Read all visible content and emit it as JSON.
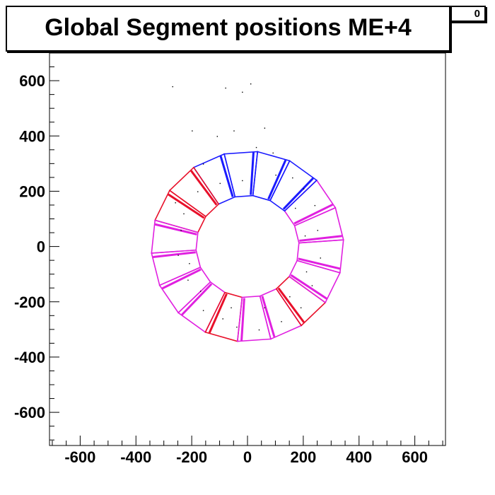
{
  "chart_data": {
    "type": "scatter",
    "title": "Global Segment positions ME+4",
    "stat_box": "0",
    "xlabel": "",
    "ylabel": "",
    "xlim": [
      -710,
      710
    ],
    "ylim": [
      -720,
      700
    ],
    "x_ticks": [
      -600,
      -400,
      -200,
      0,
      200,
      400,
      600
    ],
    "y_ticks": [
      600,
      400,
      200,
      0,
      -200,
      -400,
      -600
    ],
    "x_tick_labels": [
      "-600",
      "-400",
      "-200",
      "0",
      "200",
      "400",
      "600"
    ],
    "y_tick_labels": [
      "600",
      "400",
      "200",
      "0",
      "-200",
      "-400",
      "-600"
    ],
    "ring": {
      "inner_radius": 185,
      "outer_radius": 345,
      "chambers": 18,
      "rotation_deg": 84
    },
    "colors": {
      "blue": "#1a1aff",
      "red": "#e8102a",
      "magenta": "#e020e0",
      "purple": "#b030e0",
      "dot": "#000000"
    },
    "chamber_colors": [
      "blue",
      "blue",
      "red",
      "red",
      "magenta",
      "magenta",
      "magenta",
      "magenta",
      "red",
      "magenta",
      "magenta",
      "red",
      "magenta",
      "magenta",
      "magenta",
      "magenta",
      "blue",
      "blue"
    ],
    "points": [
      [
        -270,
        580
      ],
      [
        -80,
        575
      ],
      [
        -20,
        560
      ],
      [
        10,
        590
      ],
      [
        60,
        430
      ],
      [
        -50,
        420
      ],
      [
        -110,
        400
      ],
      [
        -200,
        420
      ],
      [
        30,
        360
      ],
      [
        90,
        340
      ],
      [
        -160,
        300
      ],
      [
        160,
        250
      ],
      [
        -260,
        160
      ],
      [
        -230,
        120
      ],
      [
        -240,
        60
      ],
      [
        -250,
        -30
      ],
      [
        -215,
        -120
      ],
      [
        -160,
        -230
      ],
      [
        -90,
        -260
      ],
      [
        -40,
        -290
      ],
      [
        40,
        -300
      ],
      [
        120,
        -270
      ],
      [
        190,
        -220
      ],
      [
        230,
        -140
      ],
      [
        260,
        -40
      ],
      [
        250,
        60
      ],
      [
        240,
        150
      ],
      [
        200,
        210
      ],
      [
        100,
        260
      ],
      [
        -20,
        240
      ],
      [
        -100,
        230
      ],
      [
        -180,
        200
      ],
      [
        -210,
        -60
      ],
      [
        -170,
        -160
      ],
      [
        -60,
        -220
      ],
      [
        60,
        -220
      ],
      [
        150,
        -180
      ],
      [
        210,
        -90
      ],
      [
        205,
        40
      ],
      [
        170,
        140
      ]
    ]
  }
}
